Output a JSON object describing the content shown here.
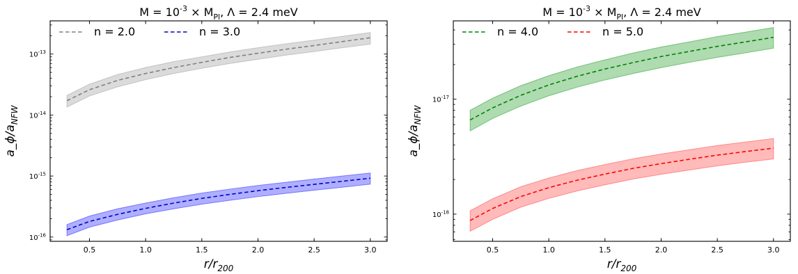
{
  "figure": {
    "panels": [
      {
        "title": "M = 10^{-3} × M_Pl, Λ = 2.4 meV",
        "xlabel": "r/r_200",
        "ylabel": "a_ϕ/a_NFW"
      },
      {
        "title": "M = 10^{-3} × M_Pl, Λ = 2.4 meV",
        "xlabel": "r/r_200",
        "ylabel": "a_ϕ/a_NFW"
      }
    ]
  },
  "chart_data": [
    {
      "type": "line",
      "title": "M = 10^{-3} × M_Pl, Λ = 2.4 meV",
      "xlabel": "r/r_200",
      "ylabel": "a_ϕ/a_NFW",
      "yscale": "log",
      "xlim": [
        0.15,
        3.15
      ],
      "ylim": [
        8.5e-17,
        3.5e-13
      ],
      "xticks": [
        0.5,
        1.0,
        1.5,
        2.0,
        2.5,
        3.0
      ],
      "xtick_labels": [
        "0.5",
        "1.0",
        "1.5",
        "2.0",
        "2.5",
        "3.0"
      ],
      "yticks": [
        1e-16,
        1e-15,
        1e-14,
        1e-13
      ],
      "ytick_labels": [
        "10^-16",
        "10^-15",
        "10^-14",
        "10^-13"
      ],
      "grid": false,
      "legend_position": "top-left",
      "x": [
        0.3,
        0.5,
        0.75,
        1.0,
        1.25,
        1.5,
        1.75,
        2.0,
        2.25,
        2.5,
        2.75,
        3.0
      ],
      "series": [
        {
          "name": "n = 2.0",
          "color": "#808080",
          "band_color": "#b0b0b0",
          "style": "dashed",
          "y": [
            1.72e-14,
            2.6e-14,
            3.7e-14,
            4.8e-14,
            6e-14,
            7.3e-14,
            8.8e-14,
            1.03e-13,
            1.2e-13,
            1.38e-13,
            1.6e-13,
            1.85e-13
          ],
          "upper": [
            2.1e-14,
            3.2e-14,
            4.6e-14,
            6e-14,
            7.5e-14,
            9e-14,
            1.08e-13,
            1.27e-13,
            1.47e-13,
            1.69e-13,
            1.95e-13,
            2.25e-13
          ],
          "lower": [
            1.35e-14,
            2.05e-14,
            2.9e-14,
            3.8e-14,
            4.8e-14,
            5.85e-14,
            7e-14,
            8.2e-14,
            9.6e-14,
            1.1e-13,
            1.27e-13,
            1.45e-13
          ]
        },
        {
          "name": "n = 3.0",
          "color": "#0000cc",
          "band_color": "#4d4dff",
          "style": "dashed",
          "y": [
            1.32e-16,
            1.8e-16,
            2.35e-16,
            2.95e-16,
            3.6e-16,
            4.3e-16,
            5e-16,
            5.75e-16,
            6.5e-16,
            7.3e-16,
            8.2e-16,
            9.2e-16
          ],
          "upper": [
            1.6e-16,
            2.2e-16,
            2.9e-16,
            3.6e-16,
            4.4e-16,
            5.25e-16,
            6.1e-16,
            7e-16,
            7.9e-16,
            8.9e-16,
            1e-15,
            1.12e-15
          ],
          "lower": [
            1.05e-16,
            1.45e-16,
            1.9e-16,
            2.4e-16,
            2.9e-16,
            3.45e-16,
            4e-16,
            4.6e-16,
            5.2e-16,
            5.85e-16,
            6.55e-16,
            7.35e-16
          ]
        }
      ]
    },
    {
      "type": "line",
      "title": "M = 10^{-3} × M_Pl, Λ = 2.4 meV",
      "xlabel": "r/r_200",
      "ylabel": "a_ϕ/a_NFW",
      "yscale": "log",
      "xlim": [
        0.15,
        3.15
      ],
      "ylim": [
        5.8e-19,
        4.8e-17
      ],
      "xticks": [
        0.5,
        1.0,
        1.5,
        2.0,
        2.5,
        3.0
      ],
      "xtick_labels": [
        "0.5",
        "1.0",
        "1.5",
        "2.0",
        "2.5",
        "3.0"
      ],
      "yticks": [
        1e-18,
        1e-17
      ],
      "ytick_labels": [
        "10^-18",
        "10^-17"
      ],
      "grid": false,
      "legend_position": "top-left",
      "x": [
        0.3,
        0.5,
        0.75,
        1.0,
        1.25,
        1.5,
        1.75,
        2.0,
        2.25,
        2.5,
        2.75,
        3.0
      ],
      "series": [
        {
          "name": "n = 4.0",
          "color": "#008000",
          "band_color": "#4caf50",
          "style": "dashed",
          "y": [
            6.6e-18,
            8.4e-18,
            1.08e-17,
            1.33e-17,
            1.58e-17,
            1.83e-17,
            2.08e-17,
            2.35e-17,
            2.6e-17,
            2.88e-17,
            3.15e-17,
            3.45e-17
          ],
          "upper": [
            8e-18,
            1.02e-17,
            1.31e-17,
            1.6e-17,
            1.9e-17,
            2.2e-17,
            2.52e-17,
            2.84e-17,
            3.15e-17,
            3.5e-17,
            3.83e-17,
            4.2e-17
          ],
          "lower": [
            5.3e-18,
            6.8e-18,
            8.7e-18,
            1.07e-17,
            1.27e-17,
            1.47e-17,
            1.67e-17,
            1.88e-17,
            2.09e-17,
            2.31e-17,
            2.53e-17,
            2.78e-17
          ]
        },
        {
          "name": "n = 5.0",
          "color": "#ff0000",
          "band_color": "#ff6666",
          "style": "dashed",
          "y": [
            8.8e-19,
            1.12e-18,
            1.42e-18,
            1.7e-18,
            1.97e-18,
            2.23e-18,
            2.5e-18,
            2.75e-18,
            3e-18,
            3.26e-18,
            3.5e-18,
            3.75e-18
          ],
          "upper": [
            1.07e-18,
            1.36e-18,
            1.73e-18,
            2.06e-18,
            2.39e-18,
            2.7e-18,
            3.03e-18,
            3.33e-18,
            3.63e-18,
            3.95e-18,
            4.24e-18,
            4.55e-18
          ],
          "lower": [
            7.1e-19,
            9e-19,
            1.15e-18,
            1.37e-18,
            1.59e-18,
            1.8e-18,
            2.02e-18,
            2.22e-18,
            2.42e-18,
            2.63e-18,
            2.83e-18,
            3.02e-18
          ]
        }
      ]
    }
  ]
}
